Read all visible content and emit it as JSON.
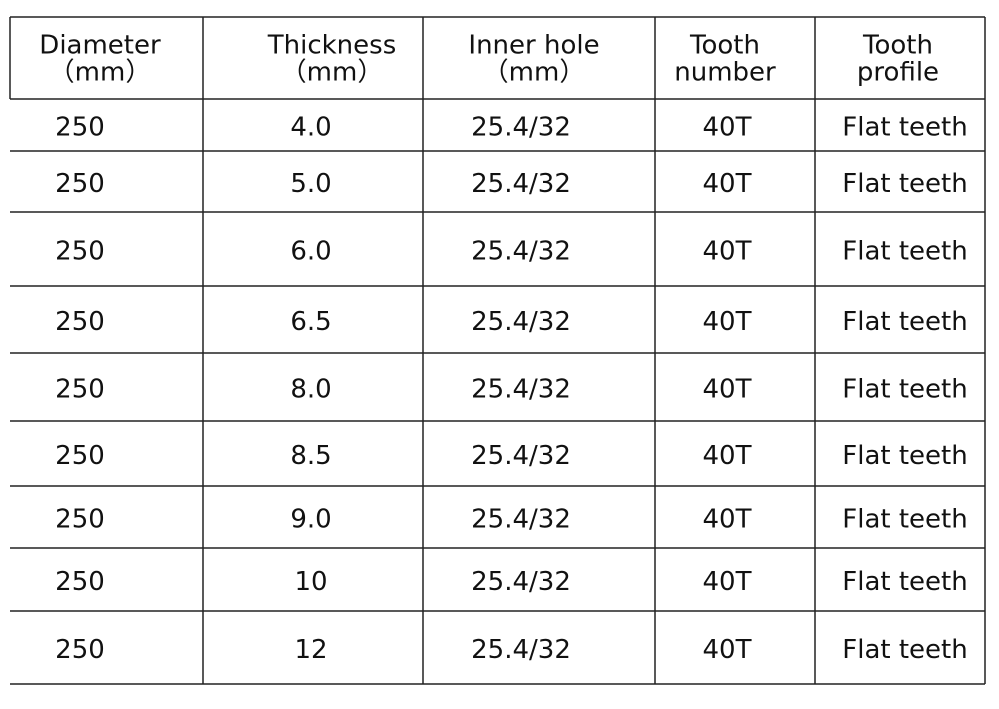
{
  "table": {
    "header": [
      [
        "Diameter",
        "（mm）"
      ],
      [
        "Thickness",
        "（mm）"
      ],
      [
        "Inner hole",
        "（mm）"
      ],
      [
        "Tooth",
        "number"
      ],
      [
        "Tooth",
        "profile"
      ]
    ],
    "rows": [
      [
        "250",
        "4.0",
        "25.4/32",
        "40T",
        "Flat teeth"
      ],
      [
        "250",
        "5.0",
        "25.4/32",
        "40T",
        "Flat teeth"
      ],
      [
        "250",
        "6.0",
        "25.4/32",
        "40T",
        "Flat teeth"
      ],
      [
        "250",
        "6.5",
        "25.4/32",
        "40T",
        "Flat teeth"
      ],
      [
        "250",
        "8.0",
        "25.4/32",
        "40T",
        "Flat teeth"
      ],
      [
        "250",
        "8.5",
        "25.4/32",
        "40T",
        "Flat teeth"
      ],
      [
        "250",
        "9.0",
        "25.4/32",
        "40T",
        "Flat teeth"
      ],
      [
        "250",
        "10",
        "25.4/32",
        "40T",
        "Flat teeth"
      ],
      [
        "250",
        "12",
        "25.4/32",
        "40T",
        "Flat teeth"
      ]
    ]
  }
}
